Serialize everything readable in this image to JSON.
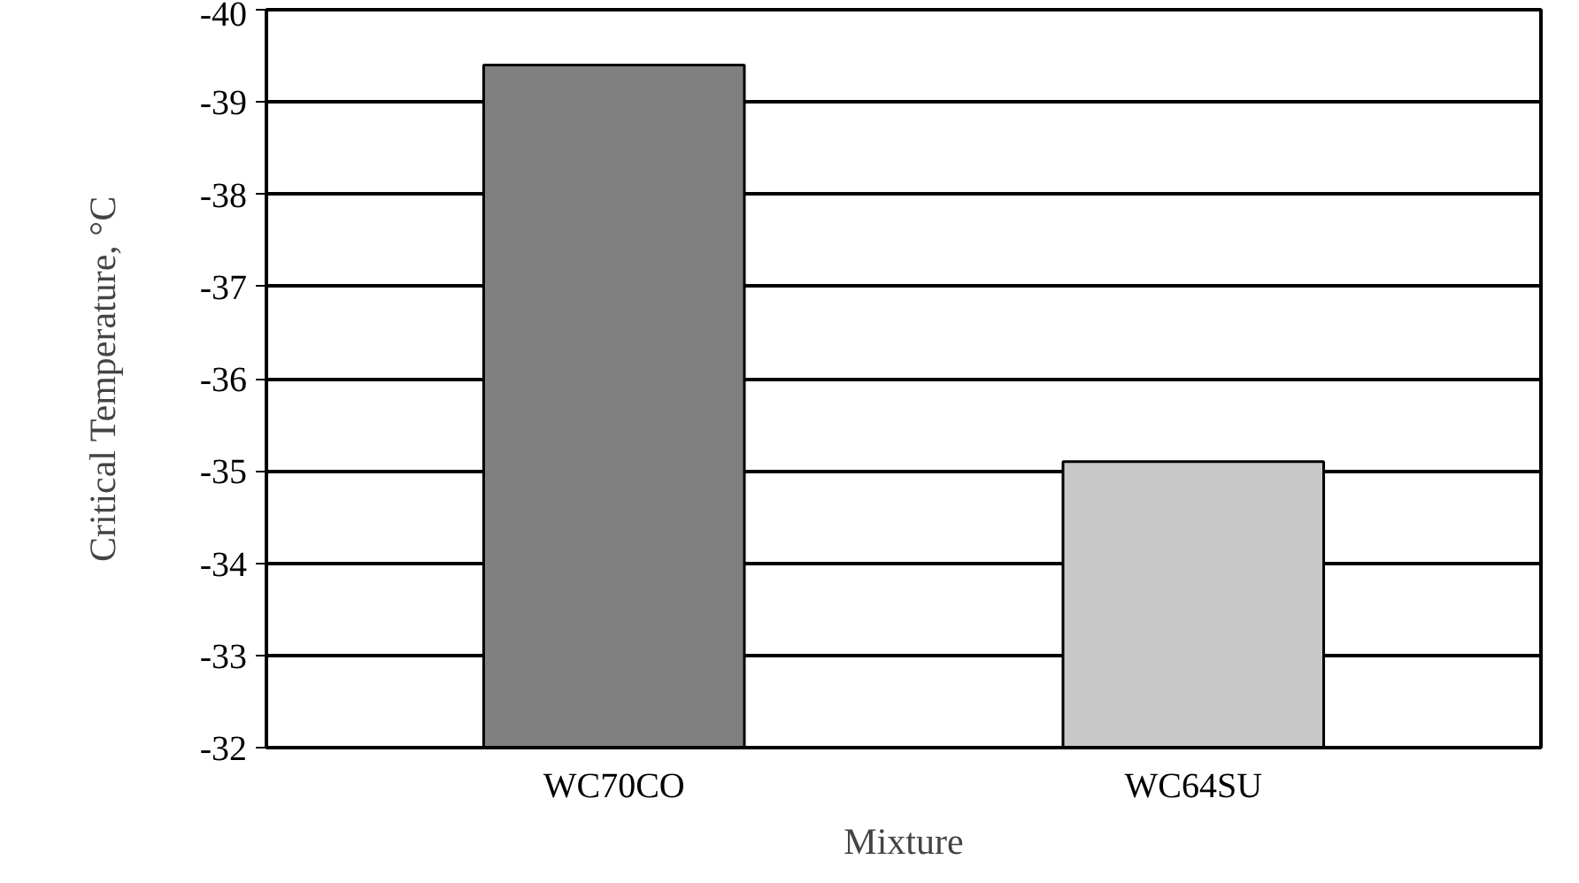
{
  "chart_data": {
    "type": "bar",
    "xlabel": "Mixture",
    "ylabel": "Critical Temperature, °C",
    "categories": [
      "WC70CO",
      "WC64SU"
    ],
    "values": [
      -39.4,
      -35.1
    ],
    "colors": [
      "#808080",
      "#c8c8c8"
    ],
    "ylim": [
      -32,
      -40
    ],
    "yticks": [
      -32,
      -33,
      -34,
      -35,
      -36,
      -37,
      -38,
      -39,
      -40
    ],
    "grid": "y"
  }
}
